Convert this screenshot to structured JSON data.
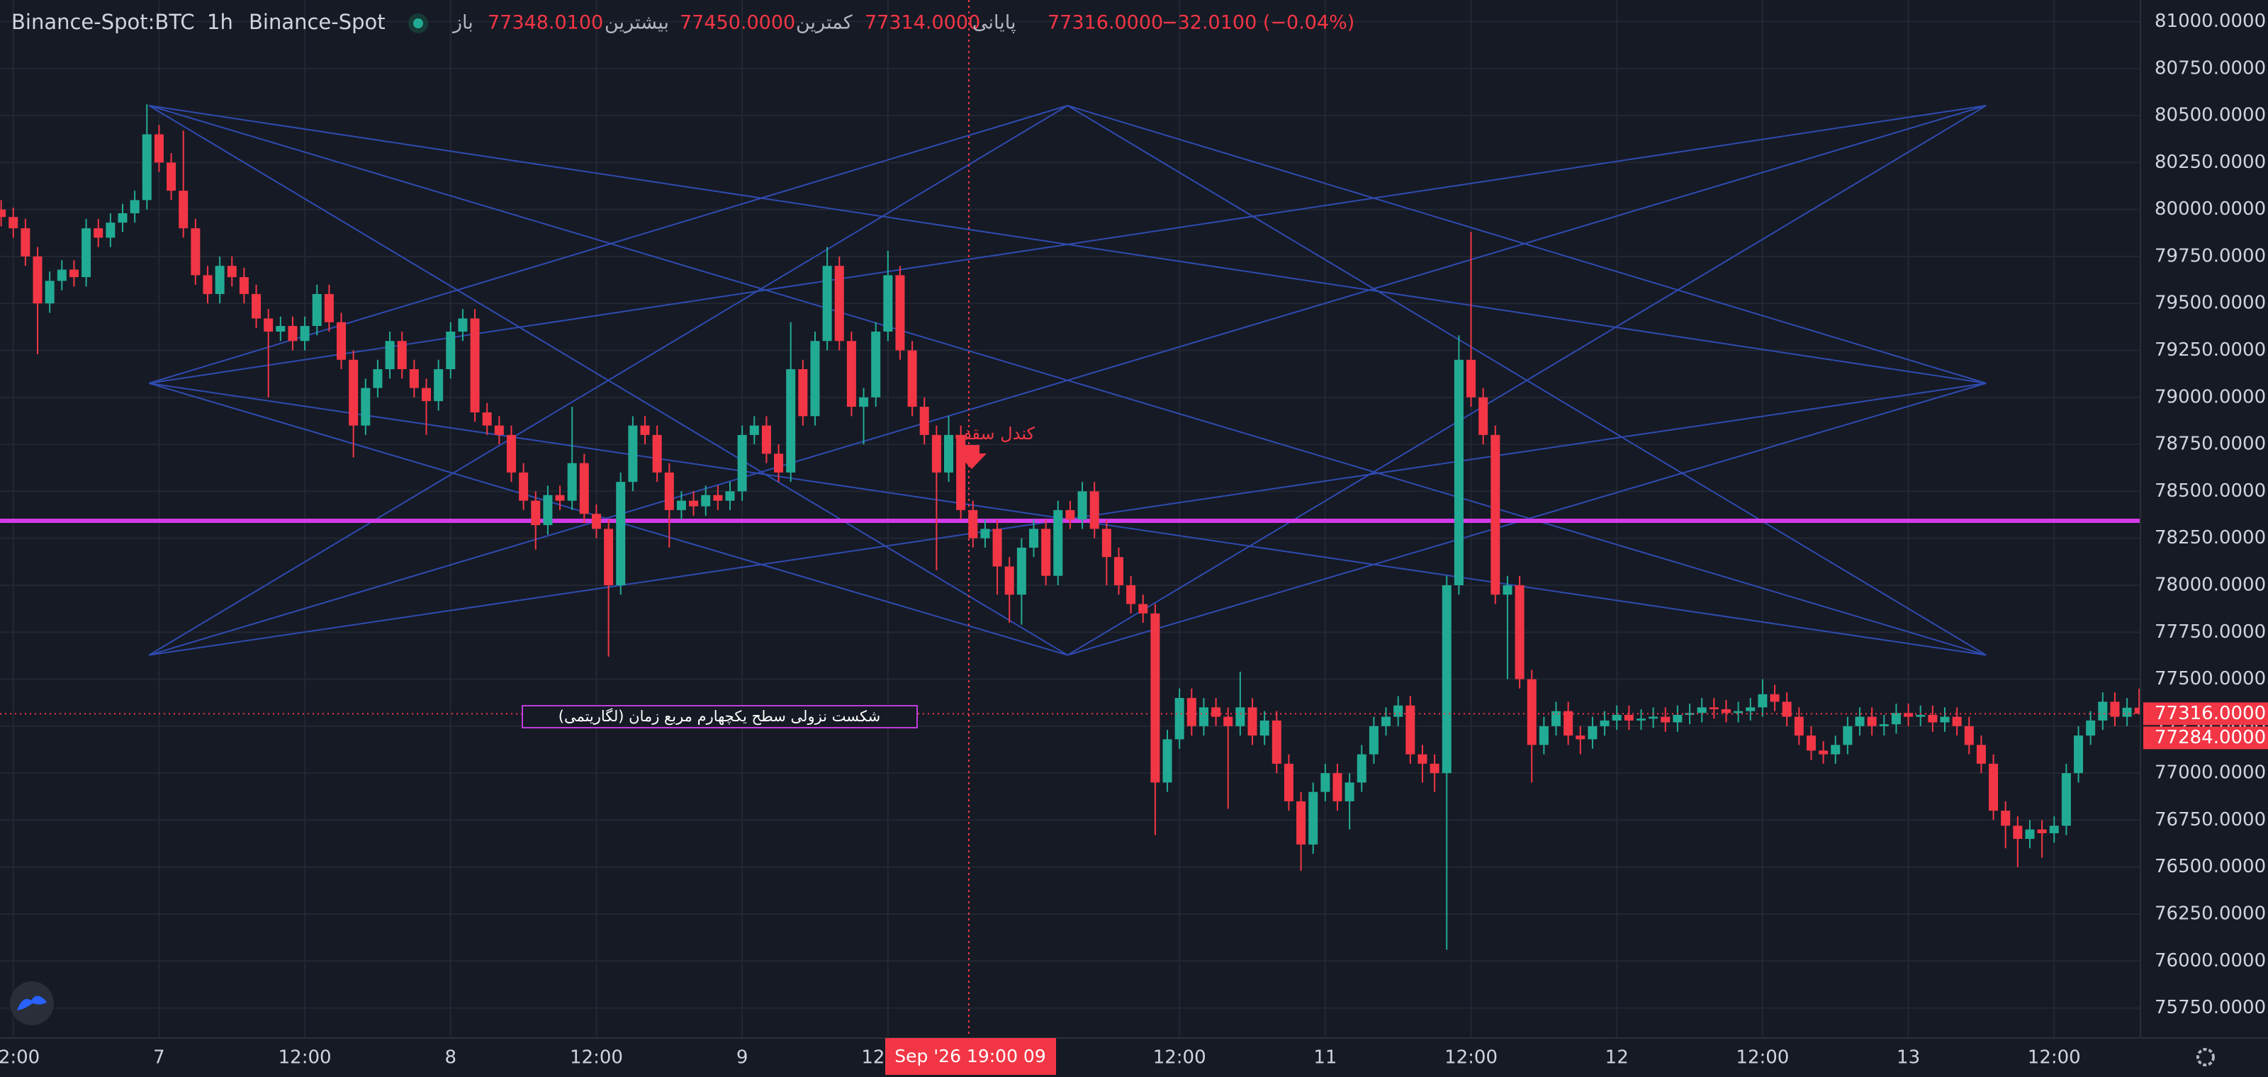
{
  "chart_data": {
    "type": "candlestick",
    "title": "Binance-Spot:BTC",
    "interval": "1h",
    "exchange": "Binance-Spot",
    "ohlc_legend": [
      {
        "label": "باز",
        "value": "77348.0100"
      },
      {
        "label": "بیشترین",
        "value": "77450.0000"
      },
      {
        "label": "کمترین",
        "value": "77314.0000"
      },
      {
        "label": "پایانی",
        "value": "77316.0000"
      }
    ],
    "change": "−32.0100 (−0.04%)",
    "annotations": [
      "کندل سقف",
      "شکست نزولی سطح یکچهارم مربع زمان (لگاریتمی)"
    ],
    "crosshair_label": "Sep '26  19:00 09",
    "price_labels": [
      "77316.0000",
      "77284.0000"
    ],
    "colors": {
      "up": "#22ab94",
      "down": "#f23645"
    },
    "grid": true,
    "ylim": [
      75590,
      81115
    ],
    "yticks": [
      {
        "value": 81000,
        "label": "81000.0000"
      },
      {
        "value": 80750,
        "label": "80750.0000"
      },
      {
        "value": 80500,
        "label": "80500.0000"
      },
      {
        "value": 80250,
        "label": "80250.0000"
      },
      {
        "value": 80000,
        "label": "80000.0000"
      },
      {
        "value": 79750,
        "label": "79750.0000"
      },
      {
        "value": 79500,
        "label": "79500.0000"
      },
      {
        "value": 79250,
        "label": "79250.0000"
      },
      {
        "value": 79000,
        "label": "79000.0000"
      },
      {
        "value": 78750,
        "label": "78750.0000"
      },
      {
        "value": 78500,
        "label": "78500.0000"
      },
      {
        "value": 78250,
        "label": "78250.0000"
      },
      {
        "value": 78000,
        "label": "78000.0000"
      },
      {
        "value": 77750,
        "label": "77750.0000"
      },
      {
        "value": 77500,
        "label": "77500.0000"
      },
      {
        "value": 77250,
        "label": "77250.0000"
      },
      {
        "value": 77000,
        "label": "77000.0000"
      },
      {
        "value": 76750,
        "label": "76750.0000"
      },
      {
        "value": 76500,
        "label": "76500.0000"
      },
      {
        "value": 76250,
        "label": "76250.0000"
      },
      {
        "value": 76000,
        "label": "76000.0000"
      },
      {
        "value": 75750,
        "label": "75750.0000"
      }
    ],
    "xticks": [
      {
        "value": 1,
        "label": "12:00"
      },
      {
        "value": 13,
        "label": "7"
      },
      {
        "value": 25,
        "label": "12:00"
      },
      {
        "value": 37,
        "label": "8"
      },
      {
        "value": 49,
        "label": "12:00"
      },
      {
        "value": 61,
        "label": "9"
      },
      {
        "value": 73,
        "label": "12:00"
      },
      {
        "value": 97,
        "label": "12:00"
      },
      {
        "value": 109,
        "label": "11"
      },
      {
        "value": 121,
        "label": "12:00"
      },
      {
        "value": 133,
        "label": "12"
      },
      {
        "value": 145,
        "label": "12:00"
      },
      {
        "value": 157,
        "label": "13"
      },
      {
        "value": 169,
        "label": "12:00"
      }
    ],
    "open": [
      80000,
      79960,
      79900,
      79750,
      79500,
      79620,
      79680,
      79640,
      79900,
      79850,
      79930,
      79980,
      80050,
      80400,
      80250,
      80100,
      79900,
      79650,
      79550,
      79700,
      79640,
      79550,
      79420,
      79350,
      79380,
      79300,
      79380,
      79550,
      79400,
      79200,
      78850,
      79050,
      79150,
      79300,
      79150,
      79050,
      78980,
      79150,
      79350,
      79420,
      78920,
      78850,
      78800,
      78600,
      78450,
      78320,
      78480,
      78450,
      78650,
      78380,
      78300,
      78000,
      78550,
      78850,
      78800,
      78600,
      78400,
      78450,
      78420,
      78480,
      78450,
      78500,
      78800,
      78850,
      78700,
      78600,
      79150,
      78900,
      79300,
      79700,
      79300,
      78950,
      79000,
      79350,
      79650,
      79250,
      78950,
      78800,
      78600,
      78800,
      78400,
      78250,
      78300,
      78100,
      77950,
      78200,
      78300,
      78050,
      78400,
      78350,
      78500,
      78300,
      78150,
      78000,
      77900,
      77850,
      76950,
      77180,
      77400,
      77250,
      77350,
      77300,
      77250,
      77350,
      77200,
      77280,
      77050,
      76850,
      76620,
      76900,
      77000,
      76850,
      76950,
      77100,
      77250,
      77300,
      77360,
      77100,
      77050,
      77000,
      78000,
      79200,
      79000,
      78800,
      77950,
      78000,
      77500,
      77150,
      77250,
      77330,
      77200,
      77180,
      77250,
      77280,
      77310,
      77280,
      77290,
      77300,
      77270,
      77310,
      77320,
      77350,
      77340,
      77320,
      77330,
      77350,
      77420,
      77380,
      77300,
      77200,
      77120,
      77100,
      77150,
      77250,
      77300,
      77250,
      77260,
      77320,
      77300,
      77310,
      77270,
      77300,
      77250,
      77150,
      77050,
      76800,
      76720,
      76650,
      76700,
      76680,
      76720,
      77000,
      77200,
      77280,
      77380,
      77300,
      77348.01
    ],
    "high": [
      80050,
      80010,
      79950,
      79800,
      79670,
      79730,
      79730,
      79950,
      79950,
      79980,
      80030,
      80100,
      80560,
      80450,
      80300,
      80420,
      79950,
      79700,
      79750,
      79750,
      79690,
      79600,
      79470,
      79430,
      79430,
      79430,
      79600,
      79600,
      79450,
      79250,
      79100,
      79200,
      79350,
      79350,
      79200,
      79100,
      79200,
      79400,
      79470,
      79470,
      78970,
      78900,
      78850,
      78650,
      78500,
      78530,
      78530,
      78950,
      78700,
      78430,
      78350,
      78600,
      78900,
      78900,
      78850,
      78650,
      78500,
      78500,
      78530,
      78530,
      78550,
      78850,
      78900,
      78900,
      78750,
      79400,
      79200,
      79350,
      79800,
      79750,
      79350,
      79050,
      79400,
      79780,
      79700,
      79300,
      79000,
      78850,
      78900,
      78850,
      78450,
      78350,
      78350,
      78150,
      78250,
      78350,
      78350,
      78450,
      78450,
      78550,
      78550,
      78350,
      78200,
      78050,
      77950,
      77900,
      77230,
      77450,
      77450,
      77400,
      77400,
      77350,
      77540,
      77400,
      77330,
      77330,
      77100,
      76900,
      76950,
      77050,
      77050,
      77000,
      77150,
      77300,
      77350,
      77410,
      77410,
      77150,
      77100,
      78050,
      79330,
      79880,
      79050,
      78850,
      78050,
      78050,
      77550,
      77300,
      77380,
      77380,
      77250,
      77300,
      77330,
      77360,
      77360,
      77340,
      77350,
      77350,
      77360,
      77370,
      77400,
      77400,
      77390,
      77380,
      77400,
      77500,
      77470,
      77430,
      77350,
      77250,
      77170,
      77200,
      77300,
      77350,
      77350,
      77310,
      77370,
      77370,
      77360,
      77360,
      77350,
      77350,
      77300,
      77200,
      77100,
      76850,
      76770,
      76750,
      76750,
      76770,
      77050,
      77250,
      77330,
      77430,
      77430,
      77400,
      77450
    ],
    "low": [
      79910,
      79850,
      79700,
      79230,
      79450,
      79570,
      79590,
      79590,
      79800,
      79800,
      79880,
      79930,
      80000,
      80200,
      80050,
      79850,
      79600,
      79500,
      79500,
      79590,
      79500,
      79370,
      79000,
      79300,
      79250,
      79250,
      79330,
      79350,
      79150,
      78680,
      78800,
      79000,
      79100,
      79100,
      79000,
      78800,
      78930,
      79100,
      79300,
      78870,
      78800,
      78750,
      78550,
      78400,
      78190,
      78270,
      78400,
      78400,
      78330,
      78250,
      77620,
      77950,
      78500,
      78750,
      78550,
      78200,
      78350,
      78370,
      78370,
      78400,
      78400,
      78450,
      78750,
      78650,
      78550,
      78550,
      78850,
      78850,
      79250,
      79250,
      78900,
      78750,
      78950,
      79300,
      79200,
      78900,
      78750,
      78080,
      78550,
      78350,
      78200,
      78200,
      77950,
      77800,
      77790,
      78150,
      78000,
      78000,
      78300,
      78300,
      78250,
      78000,
      77950,
      77850,
      77800,
      76670,
      76900,
      77130,
      77200,
      77200,
      77250,
      76810,
      77200,
      77150,
      77150,
      77000,
      76800,
      76480,
      76570,
      76850,
      76800,
      76700,
      76900,
      77050,
      77200,
      77250,
      77050,
      76950,
      76900,
      76060,
      77950,
      78950,
      78750,
      77900,
      77500,
      77450,
      76950,
      77100,
      77200,
      77150,
      77100,
      77130,
      77200,
      77230,
      77230,
      77230,
      77240,
      77220,
      77220,
      77260,
      77270,
      77290,
      77270,
      77270,
      77280,
      77300,
      77330,
      77250,
      77150,
      77070,
      77050,
      77050,
      77100,
      77200,
      77200,
      77200,
      77210,
      77250,
      77250,
      77220,
      77220,
      77200,
      77100,
      77000,
      76750,
      76600,
      76500,
      76600,
      76550,
      76630,
      76670,
      76950,
      77150,
      77230,
      77250,
      77250,
      77314
    ],
    "close": [
      79960,
      79900,
      79750,
      79500,
      79620,
      79680,
      79640,
      79900,
      79850,
      79930,
      79980,
      80050,
      80400,
      80250,
      80100,
      79900,
      79650,
      79550,
      79700,
      79640,
      79550,
      79420,
      79350,
      79380,
      79300,
      79380,
      79550,
      79400,
      79200,
      78850,
      79050,
      79150,
      79300,
      79150,
      79050,
      78980,
      79150,
      79350,
      79420,
      78920,
      78850,
      78800,
      78600,
      78450,
      78320,
      78480,
      78450,
      78650,
      78380,
      78300,
      78000,
      78550,
      78850,
      78800,
      78600,
      78400,
      78450,
      78420,
      78480,
      78450,
      78500,
      78800,
      78850,
      78700,
      78600,
      79150,
      78900,
      79300,
      79700,
      79300,
      78950,
      79000,
      79350,
      79650,
      79250,
      78950,
      78800,
      78600,
      78800,
      78400,
      78250,
      78300,
      78100,
      77950,
      78200,
      78300,
      78050,
      78400,
      78350,
      78500,
      78300,
      78150,
      78000,
      77900,
      77850,
      76950,
      77180,
      77400,
      77250,
      77350,
      77300,
      77250,
      77350,
      77200,
      77280,
      77050,
      76850,
      76620,
      76900,
      77000,
      76850,
      76950,
      77100,
      77250,
      77300,
      77360,
      77100,
      77050,
      77000,
      78000,
      79200,
      79000,
      78800,
      77950,
      78000,
      77500,
      77150,
      77250,
      77330,
      77200,
      77180,
      77250,
      77280,
      77310,
      77280,
      77290,
      77300,
      77270,
      77310,
      77320,
      77350,
      77340,
      77320,
      77330,
      77350,
      77420,
      77380,
      77300,
      77200,
      77120,
      77100,
      77150,
      77250,
      77300,
      77250,
      77260,
      77320,
      77300,
      77310,
      77270,
      77300,
      77250,
      77150,
      77050,
      76800,
      76720,
      76650,
      76700,
      76680,
      76720,
      77000,
      77200,
      77280,
      77380,
      77300,
      77348.01,
      77316
    ]
  }
}
